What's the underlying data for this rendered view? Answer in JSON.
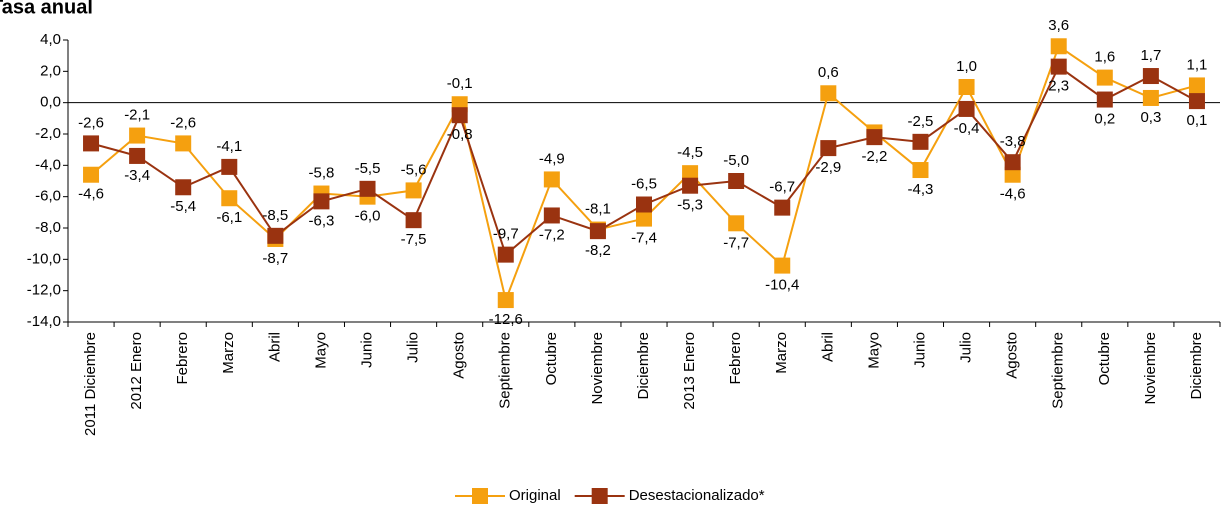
{
  "chart_data": {
    "type": "line",
    "title": "Tasa anual",
    "categories": [
      "2011 Diciembre",
      "2012 Enero",
      "Febrero",
      "Marzo",
      "Abril",
      "Mayo",
      "Junio",
      "Julio",
      "Agosto",
      "Septiembre",
      "Octubre",
      "Noviembre",
      "Diciembre",
      "2013 Enero",
      "Febrero",
      "Marzo",
      "Abril",
      "Mayo",
      "Junio",
      "Julio",
      "Agosto",
      "Septiembre",
      "Octubre",
      "Noviembre",
      "Diciembre"
    ],
    "series": [
      {
        "name": "Original",
        "color": "#f5a00f",
        "values": [
          -4.6,
          -2.1,
          -2.6,
          -6.1,
          -8.7,
          -5.8,
          -6.0,
          -5.6,
          -0.1,
          -12.6,
          -4.9,
          -8.1,
          -7.4,
          -4.5,
          -7.7,
          -10.4,
          0.6,
          -1.9,
          -4.3,
          1.0,
          -4.6,
          3.6,
          1.6,
          0.3,
          1.1
        ],
        "value_labels": [
          "-4,6",
          "-2,1",
          "-2,6",
          "-6,1",
          "-8,7",
          "-5,8",
          "-6,0",
          "-5,6",
          "-0,1",
          "-12,6",
          "-4,9",
          "-8,1",
          "-7,4",
          "-4,5",
          "-7,7",
          "-10,4",
          "0,6",
          null,
          "-4,3",
          "1,0",
          "-4,6",
          "3,6",
          "1,6",
          "0,3",
          "1,1"
        ]
      },
      {
        "name": "Desestacionalizado*",
        "color": "#9a3310",
        "values": [
          -2.6,
          -3.4,
          -5.4,
          -4.1,
          -8.5,
          -6.3,
          -5.5,
          -7.5,
          -0.8,
          -9.7,
          -7.2,
          -8.2,
          -6.5,
          -5.3,
          -5.0,
          -6.7,
          -2.9,
          -2.2,
          -2.5,
          -0.4,
          -3.8,
          2.3,
          0.2,
          1.7,
          0.1
        ],
        "value_labels": [
          "-2,6",
          "-3,4",
          "-5,4",
          "-4,1",
          "-8,5",
          "-6,3",
          "-5,5",
          "-7,5",
          "-0,8",
          "-9,7",
          "-7,2",
          "-8,2",
          "-6,5",
          "-5,3",
          "-5,0",
          "-6,7",
          "-2,9",
          "-2,2",
          "-2,5",
          "-0,4",
          "-3,8",
          "2,3",
          "0,2",
          "1,7",
          "0,1"
        ]
      }
    ],
    "ylim": [
      -14,
      4
    ],
    "yticks": [
      {
        "value": 4,
        "label": "4,0"
      },
      {
        "value": 2,
        "label": "2,0"
      },
      {
        "value": 0,
        "label": "0,0"
      },
      {
        "value": -2,
        "label": "-2,0"
      },
      {
        "value": -4,
        "label": "-4,0"
      },
      {
        "value": -6,
        "label": "-6,0"
      },
      {
        "value": -8,
        "label": "-8,0"
      },
      {
        "value": -10,
        "label": "-10,0"
      },
      {
        "value": -12,
        "label": "-12,0"
      },
      {
        "value": -14,
        "label": "-14,0"
      }
    ],
    "legend": "bottom"
  }
}
